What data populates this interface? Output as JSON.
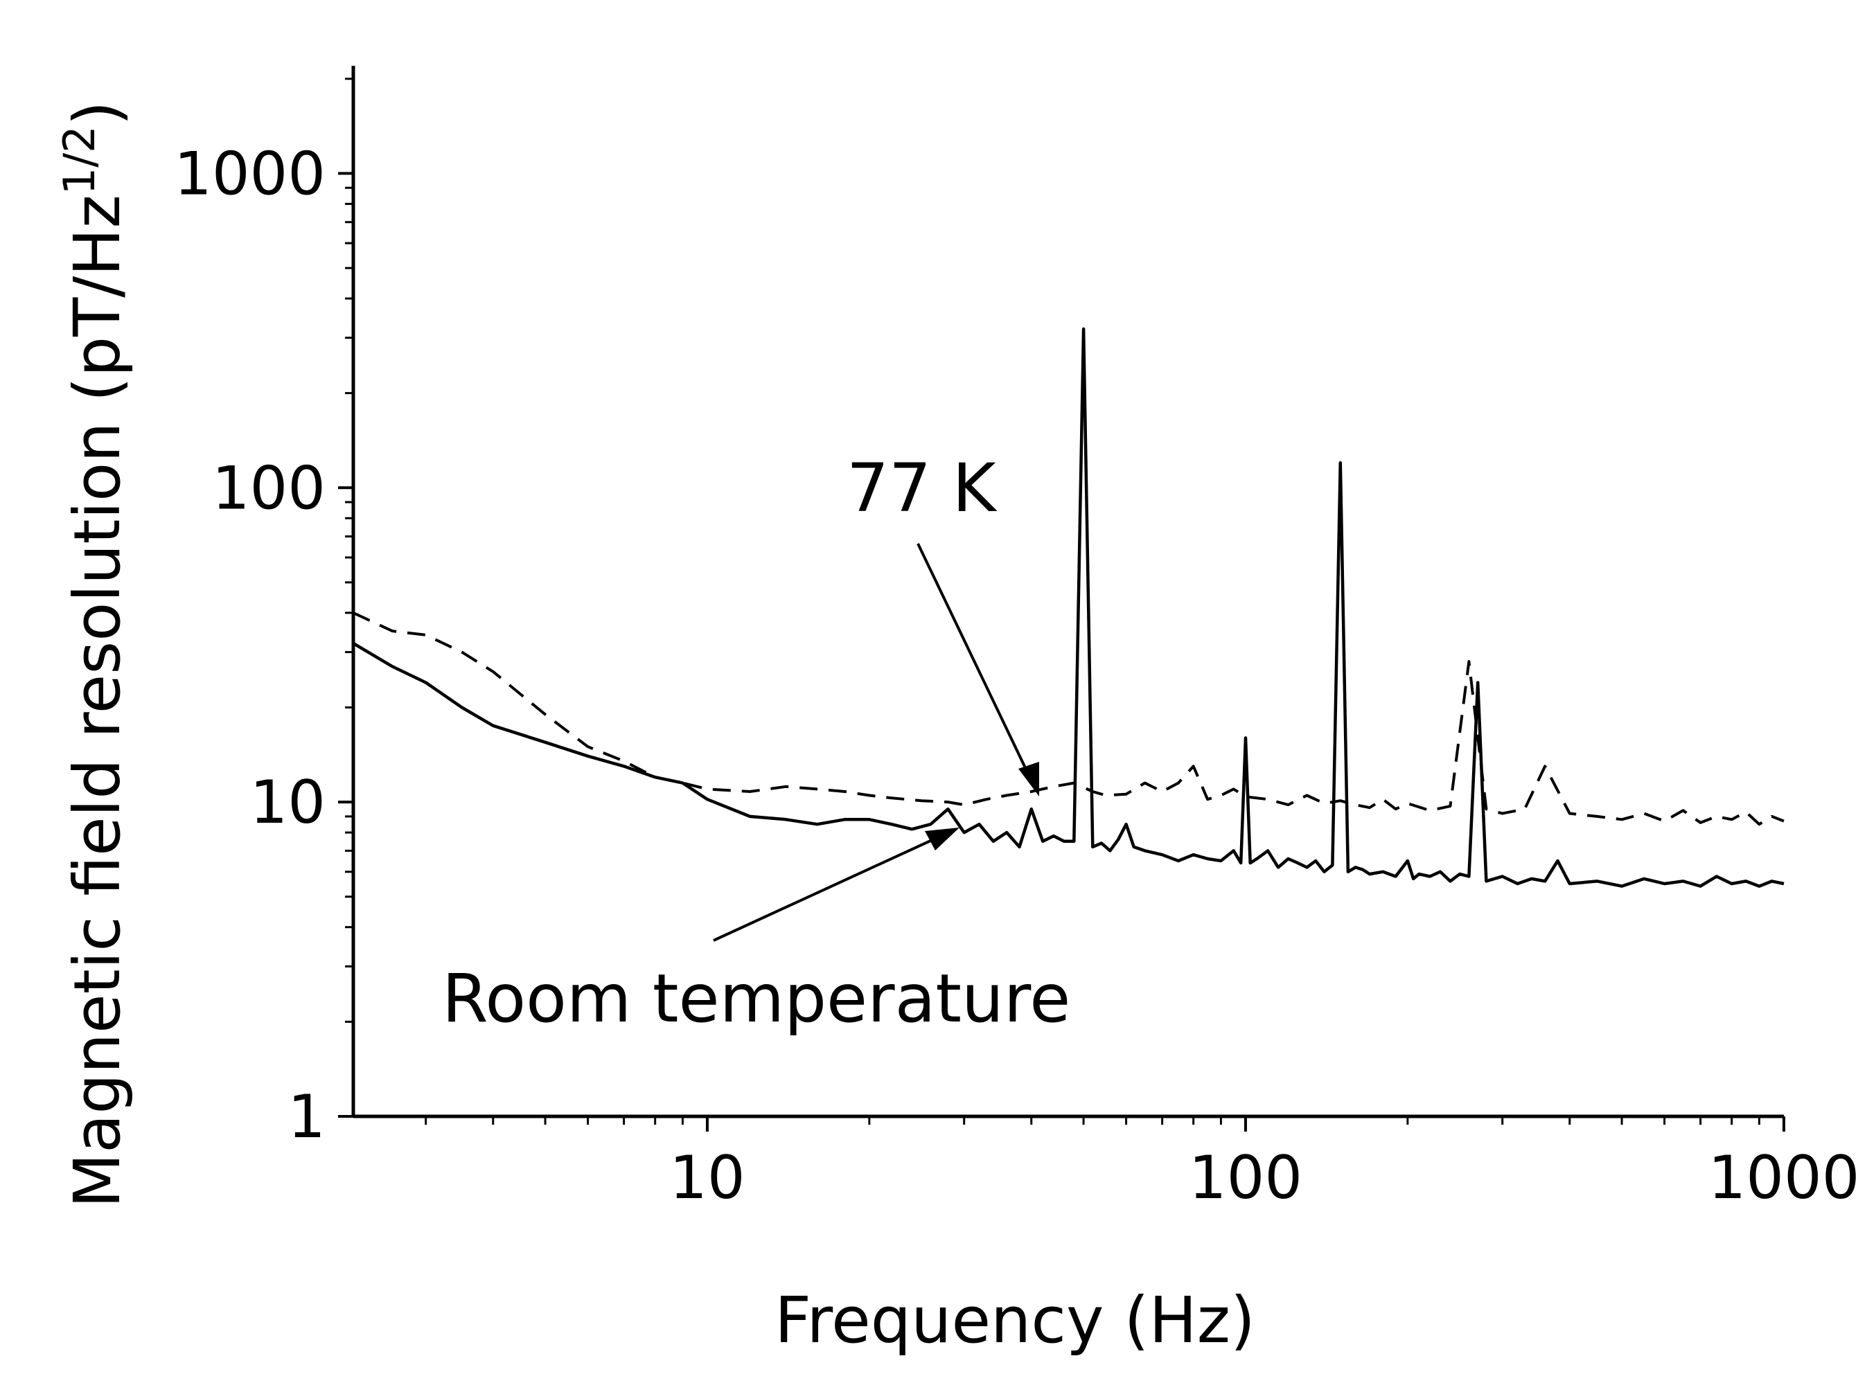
{
  "chart_data": {
    "type": "line",
    "xlabel": "Frequency (Hz)",
    "ylabel": "Magnetic field resolution (pT/Hz",
    "ylabel_exponent": "1/2",
    "ylabel_close": ")",
    "xscale": "log",
    "yscale": "log",
    "xlim": [
      2.2,
      1000
    ],
    "ylim": [
      1,
      2200
    ],
    "grid": false,
    "xticks": [
      {
        "value": 10,
        "label": "10"
      },
      {
        "value": 100,
        "label": "100"
      },
      {
        "value": 1000,
        "label": "1000"
      }
    ],
    "yticks": [
      {
        "value": 1,
        "label": "1"
      },
      {
        "value": 10,
        "label": "10"
      },
      {
        "value": 100,
        "label": "100"
      },
      {
        "value": 1000,
        "label": "1000"
      }
    ],
    "annotations": [
      {
        "text": "77 K",
        "points_to": {
          "x": 40,
          "y": 10.2
        }
      },
      {
        "text": "Room temperature",
        "points_to": {
          "x": 28,
          "y": 8.2
        }
      }
    ],
    "series": [
      {
        "style": "dashed",
        "x": [
          2.2,
          2.6,
          3,
          3.5,
          4,
          5,
          6,
          7,
          8,
          9,
          10,
          12,
          14,
          16,
          18,
          20,
          22,
          25,
          28,
          30,
          33,
          36,
          40,
          44,
          48,
          52,
          55,
          60,
          65,
          70,
          75,
          80,
          85,
          90,
          95,
          100,
          110,
          120,
          130,
          140,
          150,
          160,
          170,
          180,
          190,
          200,
          220,
          240,
          260,
          280,
          300,
          330,
          360,
          400,
          450,
          500,
          550,
          600,
          650,
          700,
          750,
          800,
          850,
          900,
          950,
          1000
        ],
        "y": [
          40,
          35,
          34,
          30,
          26,
          19,
          15,
          13.5,
          12,
          11.5,
          11,
          10.8,
          11.2,
          11,
          10.8,
          10.5,
          10.3,
          10.1,
          10,
          9.8,
          10.2,
          10.5,
          10.8,
          11.2,
          11.5,
          10.8,
          10.5,
          10.6,
          11.5,
          10.8,
          11.5,
          13,
          10.2,
          10.5,
          11,
          10.4,
          10.2,
          9.8,
          10.5,
          9.9,
          10.1,
          9.8,
          9.6,
          10.2,
          9.5,
          9.9,
          9.4,
          9.7,
          28,
          9.5,
          9.2,
          9.5,
          13,
          9.2,
          9.0,
          8.8,
          9.2,
          8.7,
          9.4,
          8.6,
          9.0,
          8.8,
          9.3,
          8.5,
          9.0,
          8.7
        ]
      },
      {
        "style": "solid",
        "x": [
          2.2,
          2.6,
          3,
          3.5,
          4,
          5,
          6,
          7,
          8,
          9,
          10,
          12,
          14,
          16,
          18,
          20,
          22,
          24,
          26,
          28,
          30,
          32,
          34,
          36,
          38,
          40,
          42,
          44,
          46,
          48,
          50,
          52,
          54,
          56,
          58,
          60,
          62,
          65,
          70,
          75,
          80,
          85,
          90,
          95,
          98,
          100,
          102,
          105,
          110,
          115,
          120,
          125,
          130,
          135,
          140,
          145,
          150,
          155,
          160,
          165,
          170,
          180,
          190,
          200,
          205,
          210,
          220,
          230,
          240,
          250,
          260,
          270,
          280,
          300,
          320,
          340,
          360,
          380,
          400,
          450,
          500,
          550,
          600,
          650,
          700,
          750,
          800,
          850,
          900,
          950,
          1000
        ],
        "y": [
          32,
          27,
          24,
          20,
          17.5,
          15.5,
          14,
          13,
          12,
          11.5,
          10.2,
          9,
          8.8,
          8.5,
          8.8,
          8.8,
          8.5,
          8.2,
          8.5,
          9.5,
          8.0,
          8.5,
          7.5,
          8.0,
          7.2,
          9.5,
          7.5,
          7.8,
          7.5,
          7.5,
          320,
          7.2,
          7.4,
          7.0,
          7.6,
          8.5,
          7.2,
          7.0,
          6.8,
          6.5,
          6.8,
          6.6,
          6.5,
          7.0,
          6.4,
          16,
          6.4,
          6.6,
          7.0,
          6.2,
          6.6,
          6.4,
          6.2,
          6.5,
          6.0,
          6.3,
          120,
          6.0,
          6.2,
          6.1,
          5.9,
          6.0,
          5.8,
          6.5,
          5.7,
          5.9,
          5.8,
          6.0,
          5.6,
          5.9,
          5.8,
          24,
          5.6,
          5.8,
          5.5,
          5.7,
          5.6,
          6.5,
          5.5,
          5.6,
          5.4,
          5.7,
          5.5,
          5.6,
          5.4,
          5.8,
          5.5,
          5.6,
          5.4,
          5.6,
          5.5
        ]
      }
    ]
  }
}
